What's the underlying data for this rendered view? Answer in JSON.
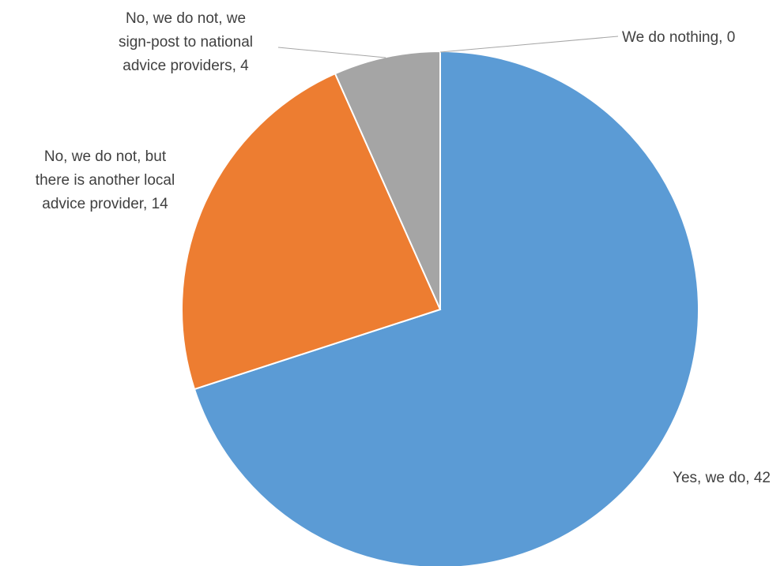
{
  "chart_data": {
    "type": "pie",
    "title": "",
    "slices": [
      {
        "label": "Yes, we do, 42",
        "name": "Yes, we do",
        "value": 42,
        "color": "#5b9bd5"
      },
      {
        "label": "No, we do not, but there is another local advice provider, 14",
        "name": "No, we do not, but there is another local advice provider",
        "value": 14,
        "color": "#ed7d31"
      },
      {
        "label": "No, we do not, we sign-post to national advice providers, 4",
        "name": "No, we do not, we sign-post to national advice providers",
        "value": 4,
        "color": "#a5a5a5"
      },
      {
        "label": "We do nothing, 0",
        "name": "We do nothing",
        "value": 0,
        "color": "#ffc000"
      }
    ],
    "label_lines": [
      [
        "Yes, we do, 42"
      ],
      [
        "No, we do not, but",
        "there is another local",
        "advice provider, 14"
      ],
      [
        "No, we do not, we",
        "sign-post to national",
        "advice providers, 4"
      ],
      [
        "We do nothing, 0"
      ]
    ],
    "legend": "none"
  }
}
